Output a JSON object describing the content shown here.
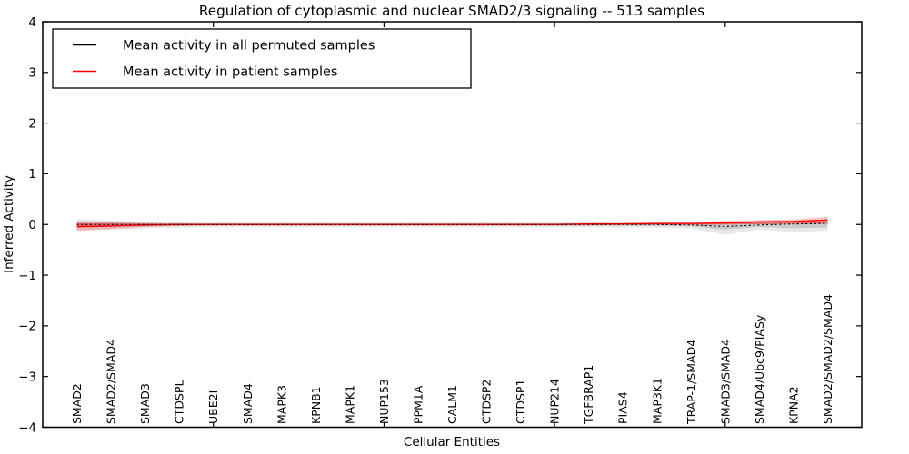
{
  "chart_data": {
    "type": "line",
    "title": "Regulation of cytoplasmic and nuclear SMAD2/3 signaling -- 513 samples",
    "xlabel": "Cellular Entities",
    "ylabel": "Inferred Activity",
    "ylim": [
      -4,
      4
    ],
    "yticks": [
      4,
      3,
      2,
      1,
      0,
      -1,
      -2,
      -3,
      -4
    ],
    "xlim": [
      0,
      24
    ],
    "xticks_unlabeled": [
      0,
      5,
      10,
      15,
      20
    ],
    "grid": false,
    "legend_position": "upper left",
    "categories": [
      "SMAD2",
      "SMAD2/SMAD4",
      "SMAD3",
      "CTDSPL",
      "UBE2I",
      "SMAD4",
      "MAPK3",
      "KPNB1",
      "MAPK1",
      "NUP153",
      "PPM1A",
      "CALM1",
      "CTDSP2",
      "CTDSP1",
      "NUP214",
      "TGFBRAP1",
      "PIAS4",
      "MAP3K1",
      "TRAP-1/SMAD4",
      "SMAD3/SMAD4",
      "SMAD4/Ubc9/PIASy",
      "KPNA2",
      "SMAD2/SMAD2/SMAD4"
    ],
    "series": [
      {
        "name": "Mean activity in all permuted samples",
        "color": "#000000",
        "line_style": "dashed",
        "values": [
          0.0,
          0.0,
          0.0,
          0.0,
          0.0,
          0.0,
          0.0,
          0.0,
          0.0,
          0.0,
          0.0,
          0.0,
          0.0,
          0.0,
          0.0,
          0.0,
          0.0,
          0.0,
          -0.01,
          -0.04,
          -0.01,
          0.01,
          0.02
        ]
      },
      {
        "name": "Mean activity in patient samples",
        "color": "#ff0000",
        "line_style": "solid",
        "values": [
          -0.04,
          -0.03,
          -0.01,
          0.0,
          0.0,
          0.0,
          0.0,
          0.0,
          0.0,
          0.0,
          0.0,
          0.0,
          0.0,
          0.0,
          0.0,
          0.01,
          0.01,
          0.02,
          0.02,
          0.03,
          0.05,
          0.06,
          0.09
        ]
      }
    ],
    "bands": [
      {
        "name": "permuted samples spread band",
        "color": "#808080",
        "opacity": 0.18,
        "upper": [
          0.1,
          0.08,
          0.06,
          0.05,
          0.04,
          0.04,
          0.04,
          0.04,
          0.04,
          0.04,
          0.04,
          0.04,
          0.04,
          0.04,
          0.04,
          0.04,
          0.05,
          0.05,
          0.06,
          0.06,
          0.07,
          0.08,
          0.1
        ],
        "lower": [
          -0.13,
          -0.1,
          -0.07,
          -0.06,
          -0.05,
          -0.05,
          -0.05,
          -0.05,
          -0.05,
          -0.05,
          -0.05,
          -0.05,
          -0.05,
          -0.05,
          -0.05,
          -0.05,
          -0.06,
          -0.06,
          -0.08,
          -0.2,
          -0.1,
          -0.15,
          -0.12
        ]
      },
      {
        "name": "patient samples spread band",
        "color": "#ff0000",
        "opacity": 0.22,
        "upper": [
          0.05,
          0.04,
          0.03,
          0.02,
          0.02,
          0.02,
          0.02,
          0.02,
          0.02,
          0.02,
          0.02,
          0.02,
          0.02,
          0.02,
          0.02,
          0.03,
          0.03,
          0.04,
          0.05,
          0.07,
          0.09,
          0.1,
          0.15
        ],
        "lower": [
          -0.12,
          -0.09,
          -0.05,
          -0.03,
          -0.02,
          -0.02,
          -0.02,
          -0.02,
          -0.02,
          -0.02,
          -0.02,
          -0.02,
          -0.02,
          -0.02,
          -0.02,
          -0.02,
          -0.01,
          -0.01,
          -0.01,
          0.0,
          0.01,
          0.02,
          0.03
        ]
      }
    ]
  }
}
